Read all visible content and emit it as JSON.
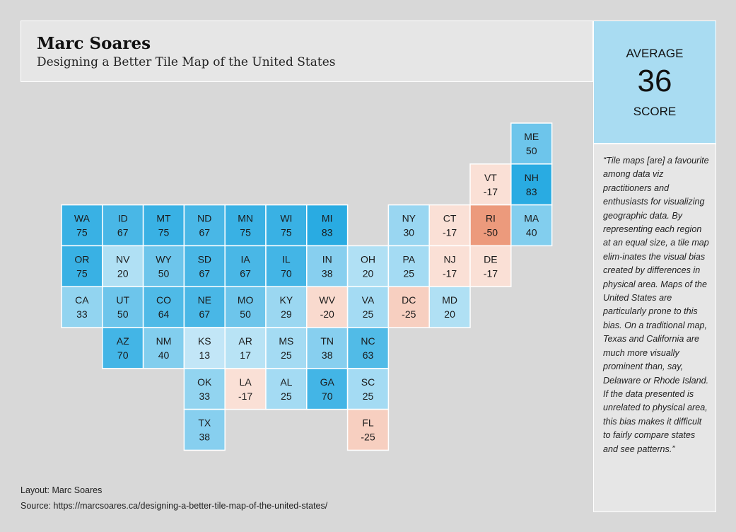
{
  "header": {
    "author": "Marc Soares",
    "title": "Designing a Better Tile Map of the United States"
  },
  "average": {
    "label": "AVERAGE",
    "value": "36",
    "sub_label": "SCORE"
  },
  "quote": "“Tile maps [are] a favourite among data viz practitioners and enthusiasts for visualizing geographic data. By representing each region at an equal size, a tile map elim-inates the visual bias created by differences in physical area. Maps of the United States are particularly prone to this bias. On a traditional map, Texas and California are much more visually prominent than, say, Delaware or Rhode Island. If the data presented is unrelated to physical area, this bias makes it difficult to fairly compare states and see patterns.”",
  "footer": {
    "layout": "Layout: Marc Soares",
    "source": "Source: https://marcsoares.ca/designing-a-better-tile-map-of-the-united-states/"
  },
  "colors": {
    "positive_max": "#29abe2",
    "positive_min": "#eaf6fc",
    "negative_max": "#ec9a7c",
    "negative_min": "#fae0d6"
  },
  "chart_data": {
    "type": "tile-map",
    "title": "Designing a Better Tile Map of the United States",
    "value_range": [
      -50,
      83
    ],
    "tiles": [
      {
        "state": "ME",
        "value": 50,
        "col": 11,
        "row": 0
      },
      {
        "state": "VT",
        "value": -17,
        "col": 10,
        "row": 1
      },
      {
        "state": "NH",
        "value": 83,
        "col": 11,
        "row": 1
      },
      {
        "state": "WA",
        "value": 75,
        "col": 0,
        "row": 2
      },
      {
        "state": "ID",
        "value": 67,
        "col": 1,
        "row": 2
      },
      {
        "state": "MT",
        "value": 75,
        "col": 2,
        "row": 2
      },
      {
        "state": "ND",
        "value": 67,
        "col": 3,
        "row": 2
      },
      {
        "state": "MN",
        "value": 75,
        "col": 4,
        "row": 2
      },
      {
        "state": "WI",
        "value": 75,
        "col": 5,
        "row": 2
      },
      {
        "state": "MI",
        "value": 83,
        "col": 6,
        "row": 2
      },
      {
        "state": "NY",
        "value": 30,
        "col": 8,
        "row": 2
      },
      {
        "state": "CT",
        "value": -17,
        "col": 9,
        "row": 2
      },
      {
        "state": "RI",
        "value": -50,
        "col": 10,
        "row": 2
      },
      {
        "state": "MA",
        "value": 40,
        "col": 11,
        "row": 2
      },
      {
        "state": "OR",
        "value": 75,
        "col": 0,
        "row": 3
      },
      {
        "state": "NV",
        "value": 20,
        "col": 1,
        "row": 3
      },
      {
        "state": "WY",
        "value": 50,
        "col": 2,
        "row": 3
      },
      {
        "state": "SD",
        "value": 67,
        "col": 3,
        "row": 3
      },
      {
        "state": "IA",
        "value": 67,
        "col": 4,
        "row": 3
      },
      {
        "state": "IL",
        "value": 70,
        "col": 5,
        "row": 3
      },
      {
        "state": "IN",
        "value": 38,
        "col": 6,
        "row": 3
      },
      {
        "state": "OH",
        "value": 20,
        "col": 7,
        "row": 3
      },
      {
        "state": "PA",
        "value": 25,
        "col": 8,
        "row": 3
      },
      {
        "state": "NJ",
        "value": -17,
        "col": 9,
        "row": 3
      },
      {
        "state": "DE",
        "value": -17,
        "col": 10,
        "row": 3
      },
      {
        "state": "CA",
        "value": 33,
        "col": 0,
        "row": 4
      },
      {
        "state": "UT",
        "value": 50,
        "col": 1,
        "row": 4
      },
      {
        "state": "CO",
        "value": 64,
        "col": 2,
        "row": 4
      },
      {
        "state": "NE",
        "value": 67,
        "col": 3,
        "row": 4
      },
      {
        "state": "MO",
        "value": 50,
        "col": 4,
        "row": 4
      },
      {
        "state": "KY",
        "value": 29,
        "col": 5,
        "row": 4
      },
      {
        "state": "WV",
        "value": -20,
        "col": 6,
        "row": 4
      },
      {
        "state": "VA",
        "value": 25,
        "col": 7,
        "row": 4
      },
      {
        "state": "DC",
        "value": -25,
        "col": 8,
        "row": 4
      },
      {
        "state": "MD",
        "value": 20,
        "col": 9,
        "row": 4
      },
      {
        "state": "AZ",
        "value": 70,
        "col": 1,
        "row": 5
      },
      {
        "state": "NM",
        "value": 40,
        "col": 2,
        "row": 5
      },
      {
        "state": "KS",
        "value": 13,
        "col": 3,
        "row": 5
      },
      {
        "state": "AR",
        "value": 17,
        "col": 4,
        "row": 5
      },
      {
        "state": "MS",
        "value": 25,
        "col": 5,
        "row": 5
      },
      {
        "state": "TN",
        "value": 38,
        "col": 6,
        "row": 5
      },
      {
        "state": "NC",
        "value": 63,
        "col": 7,
        "row": 5
      },
      {
        "state": "OK",
        "value": 33,
        "col": 3,
        "row": 6
      },
      {
        "state": "LA",
        "value": -17,
        "col": 4,
        "row": 6
      },
      {
        "state": "AL",
        "value": 25,
        "col": 5,
        "row": 6
      },
      {
        "state": "GA",
        "value": 70,
        "col": 6,
        "row": 6
      },
      {
        "state": "SC",
        "value": 25,
        "col": 7,
        "row": 6
      },
      {
        "state": "TX",
        "value": 38,
        "col": 3,
        "row": 7
      },
      {
        "state": "FL",
        "value": -25,
        "col": 7,
        "row": 7
      }
    ]
  }
}
